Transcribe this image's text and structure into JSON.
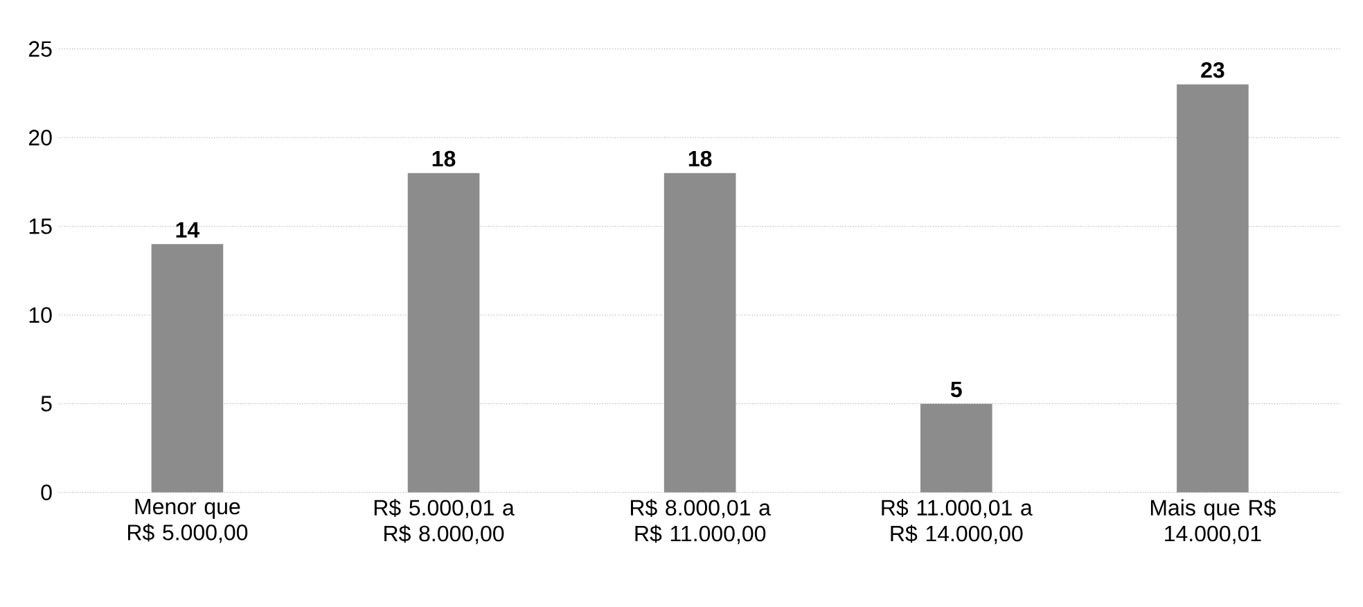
{
  "chart_data": {
    "type": "bar",
    "categories": [
      "Menor que R$ 5.000,00",
      "R$ 5.000,01 a R$ 8.000,00",
      "R$ 8.000,01 a R$ 11.000,00",
      "R$ 11.000,01 a R$ 14.000,00",
      "Mais que R$ 14.000,01"
    ],
    "values": [
      14,
      18,
      18,
      5,
      23
    ],
    "color": "#8c8c8c",
    "ylim": [
      0,
      25
    ],
    "yticks": [
      0,
      5,
      10,
      15,
      20,
      25
    ],
    "grid": "y",
    "data_labels": true
  }
}
